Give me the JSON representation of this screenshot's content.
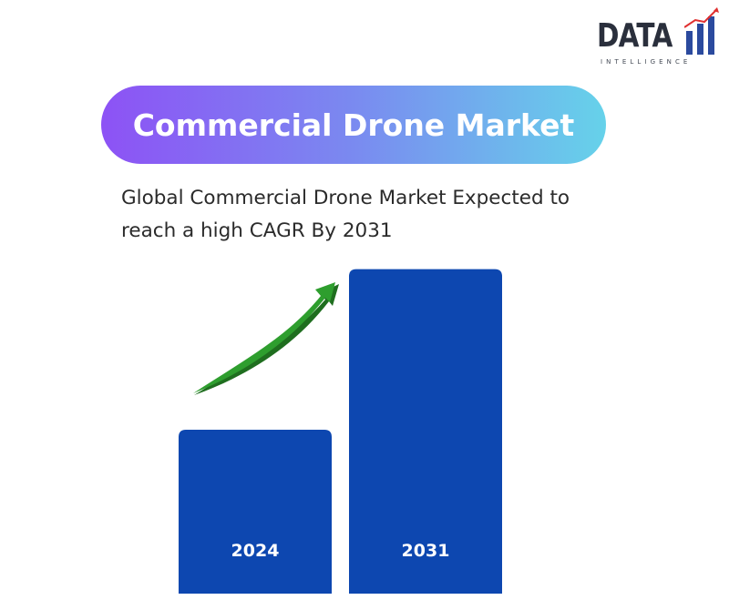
{
  "logo": {
    "wordmark": "DATA",
    "tagline": "INTELLIGENCE",
    "bar_color": "#2b4a9e",
    "text_color": "#2a2f3c",
    "accent_color": "#e03030"
  },
  "header": {
    "title": "Commercial Drone Market",
    "gradient_start": "#8d52f5",
    "gradient_end": "#66d2ea"
  },
  "subtitle": {
    "line1": "Global Commercial Drone Market Expected to",
    "line2": "reach a high CAGR By 2031"
  },
  "chart_data": {
    "type": "bar",
    "categories": [
      "2024",
      "2031"
    ],
    "values": [
      1.0,
      1.98
    ],
    "title": "",
    "xlabel": "",
    "ylabel": "",
    "bar_color": "#0d47b0",
    "label_color": "#ffffff",
    "arrow_color": "#2e9e2e",
    "arrow_icon": "trend-up-arrow-icon",
    "grid": false,
    "legend": "none"
  }
}
